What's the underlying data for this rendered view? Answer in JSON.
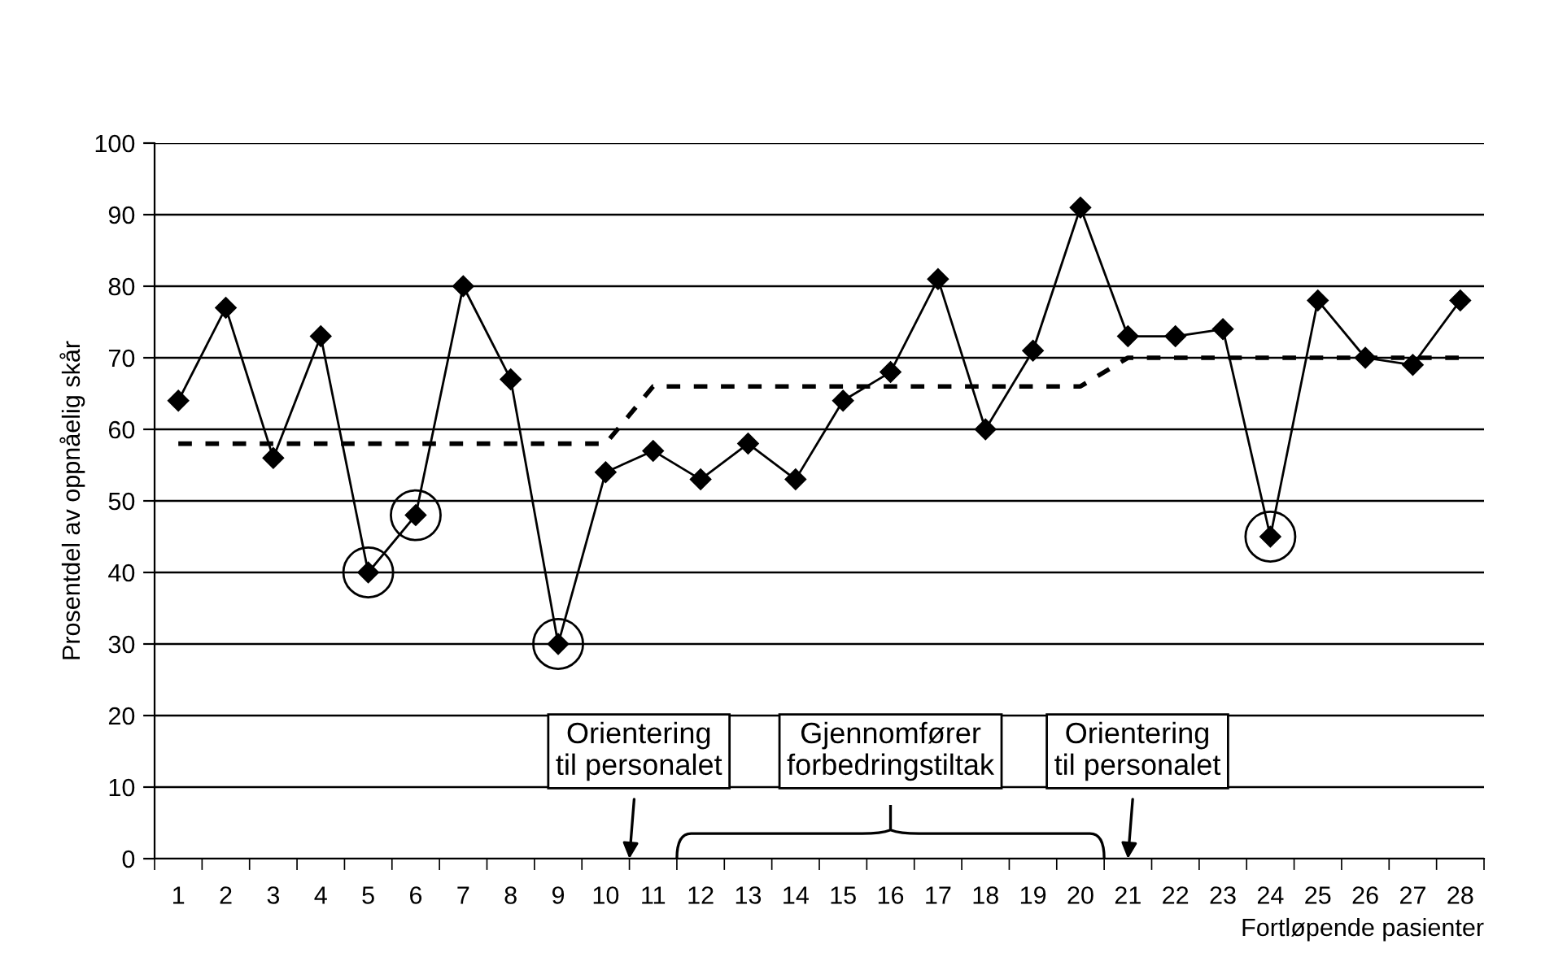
{
  "chart_data": {
    "type": "line",
    "xlabel": "Fortløpende pasienter",
    "ylabel": "Prosentdel av oppnåelig skår",
    "categories": [
      "1",
      "2",
      "3",
      "4",
      "5",
      "6",
      "7",
      "8",
      "9",
      "10",
      "11",
      "12",
      "13",
      "14",
      "15",
      "16",
      "17",
      "18",
      "19",
      "20",
      "21",
      "22",
      "23",
      "24",
      "25",
      "26",
      "27",
      "28"
    ],
    "ylim": [
      0,
      100
    ],
    "yticks": [
      0,
      10,
      20,
      30,
      40,
      50,
      60,
      70,
      80,
      90,
      100
    ],
    "grid": "y",
    "series": [
      {
        "color": "#000000",
        "marker": "diamond",
        "line_style": "solid",
        "values": [
          64,
          77,
          56,
          73,
          40,
          48,
          80,
          67,
          30,
          54,
          57,
          53,
          58,
          53,
          64,
          68,
          81,
          60,
          71,
          91,
          73,
          73,
          74,
          45,
          78,
          70,
          69,
          78
        ]
      },
      {
        "color": "#000000",
        "marker": "none",
        "line_style": "dashed",
        "values": [
          58,
          58,
          58,
          58,
          58,
          58,
          58,
          58,
          58,
          58,
          66,
          66,
          66,
          66,
          66,
          66,
          66,
          66,
          66,
          66,
          70,
          70,
          70,
          70,
          70,
          70,
          70,
          70
        ]
      },
      {
        "type": "scatter",
        "color": "#000000",
        "marker": "circle",
        "x": [
          "5",
          "6",
          "9",
          "24"
        ],
        "values": [
          40,
          48,
          30,
          45
        ]
      }
    ],
    "annotations": [
      "Orientering\ntil personalet",
      "Gjennomfører\nforbedringstiltak",
      "Orientering\ntil personalet"
    ]
  }
}
